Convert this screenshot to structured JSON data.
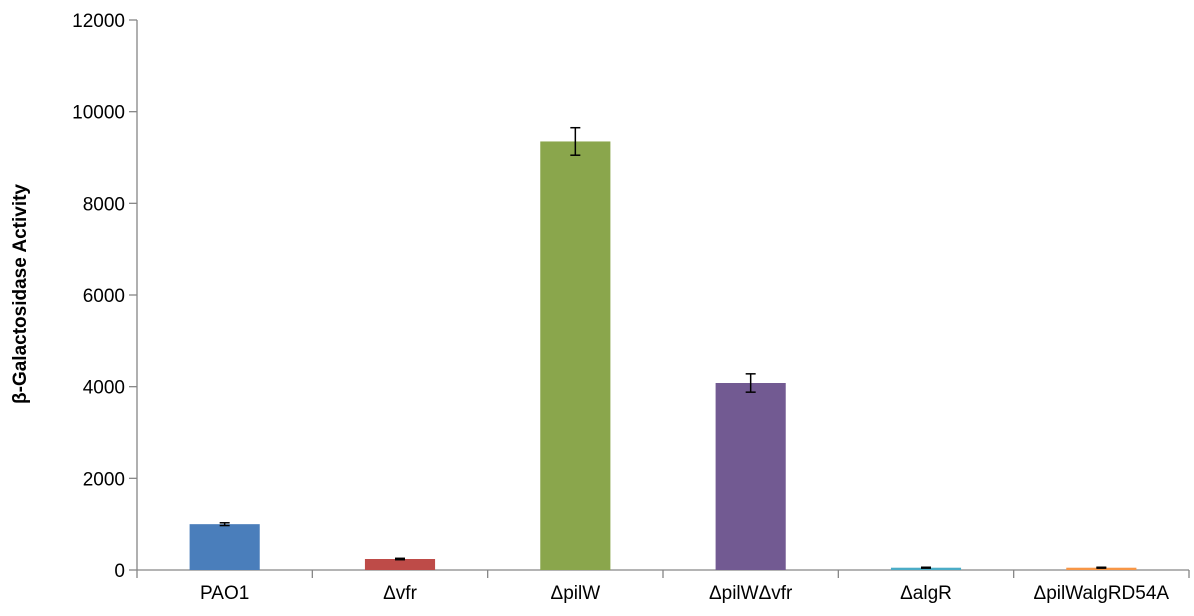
{
  "chart_data": {
    "type": "bar",
    "title": "",
    "xlabel": "",
    "ylabel": "β-Galactosidase Activity",
    "ylim": [
      0,
      12000
    ],
    "yticks": [
      0,
      2000,
      4000,
      6000,
      8000,
      10000,
      12000
    ],
    "grid": false,
    "legend": "none",
    "categories": [
      "PAO1",
      "Δvfr",
      "ΔpilW",
      "ΔpilWΔvfr",
      "ΔalgR",
      "ΔpilWalgRD54A"
    ],
    "values": [
      1000,
      240,
      9350,
      4080,
      50,
      50
    ],
    "errors": [
      30,
      15,
      300,
      200,
      10,
      10
    ],
    "colors": [
      "#4a7ebb",
      "#be4b48",
      "#8aa64c",
      "#725a92",
      "#4bacc6",
      "#f79646"
    ]
  }
}
